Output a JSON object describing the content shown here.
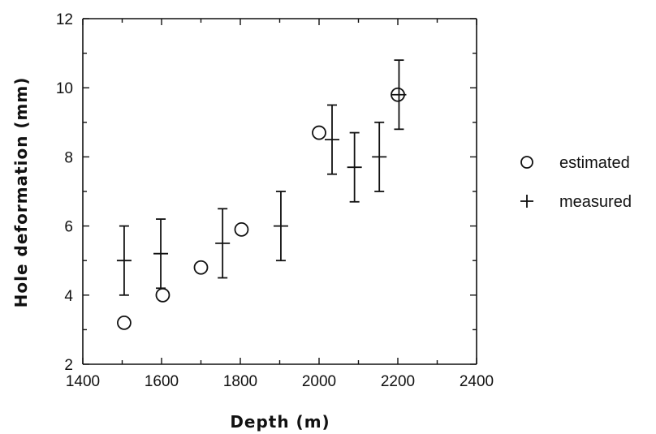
{
  "chart_data": {
    "type": "scatter",
    "xlabel": "Depth  (m)",
    "ylabel": "Hole  deformation  (mm)",
    "xlim": [
      1400,
      2400
    ],
    "ylim": [
      2,
      12
    ],
    "xticks": [
      1400,
      1600,
      1800,
      2000,
      2200,
      2400
    ],
    "yticks": [
      2,
      4,
      6,
      8,
      10,
      12
    ],
    "grid": false,
    "legend": "right",
    "series": [
      {
        "name": "estimated",
        "marker": "circle",
        "points": [
          {
            "x": 1505,
            "y": 3.2
          },
          {
            "x": 1603,
            "y": 4.0
          },
          {
            "x": 1700,
            "y": 4.8
          },
          {
            "x": 1803,
            "y": 5.9
          },
          {
            "x": 2000,
            "y": 8.7
          },
          {
            "x": 2200,
            "y": 9.8
          }
        ]
      },
      {
        "name": "measured",
        "marker": "plus",
        "points": [
          {
            "x": 1505,
            "y": 5.0,
            "err_low": 4.0,
            "err_high": 6.0
          },
          {
            "x": 1598,
            "y": 5.2,
            "err_low": 4.2,
            "err_high": 6.2
          },
          {
            "x": 1755,
            "y": 5.5,
            "err_low": 4.5,
            "err_high": 6.5
          },
          {
            "x": 1903,
            "y": 6.0,
            "err_low": 5.0,
            "err_high": 7.0
          },
          {
            "x": 2033,
            "y": 8.5,
            "err_low": 7.5,
            "err_high": 9.5
          },
          {
            "x": 2090,
            "y": 7.7,
            "err_low": 6.7,
            "err_high": 8.7
          },
          {
            "x": 2153,
            "y": 8.0,
            "err_low": 7.0,
            "err_high": 9.0
          },
          {
            "x": 2203,
            "y": 9.8,
            "err_low": 8.8,
            "err_high": 10.8
          }
        ]
      }
    ]
  }
}
